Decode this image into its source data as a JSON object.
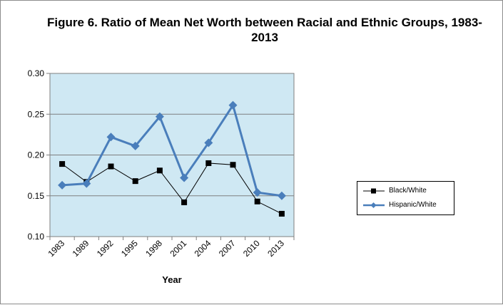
{
  "title": "Figure 6. Ratio of Mean Net Worth between Racial and Ethnic Groups, 1983-2013",
  "colors": {
    "black_white": "#000000",
    "hispanic_white": "#4a7ebb",
    "plot_bg": "#cfe8f3",
    "grid": "#7f7f7f"
  },
  "chart_data": {
    "type": "line",
    "title": "Figure 6. Ratio of Mean Net Worth between Racial and Ethnic Groups, 1983-2013",
    "xlabel": "Year",
    "ylabel": "",
    "categories": [
      "1983",
      "1989",
      "1992",
      "1995",
      "1998",
      "2001",
      "2004",
      "2007",
      "2010",
      "2013"
    ],
    "ylim": [
      0.1,
      0.3
    ],
    "yticks": [
      "0.10",
      "0.15",
      "0.20",
      "0.25",
      "0.30"
    ],
    "grid": true,
    "legend_position": "right",
    "series": [
      {
        "name": "Black/White",
        "marker": "square",
        "color": "#000000",
        "values": [
          0.189,
          0.167,
          0.186,
          0.168,
          0.181,
          0.142,
          0.19,
          0.188,
          0.143,
          0.128
        ]
      },
      {
        "name": "Hispanic/White",
        "marker": "diamond",
        "color": "#4a7ebb",
        "values": [
          0.163,
          0.165,
          0.222,
          0.211,
          0.247,
          0.172,
          0.215,
          0.261,
          0.154,
          0.15
        ]
      }
    ]
  }
}
